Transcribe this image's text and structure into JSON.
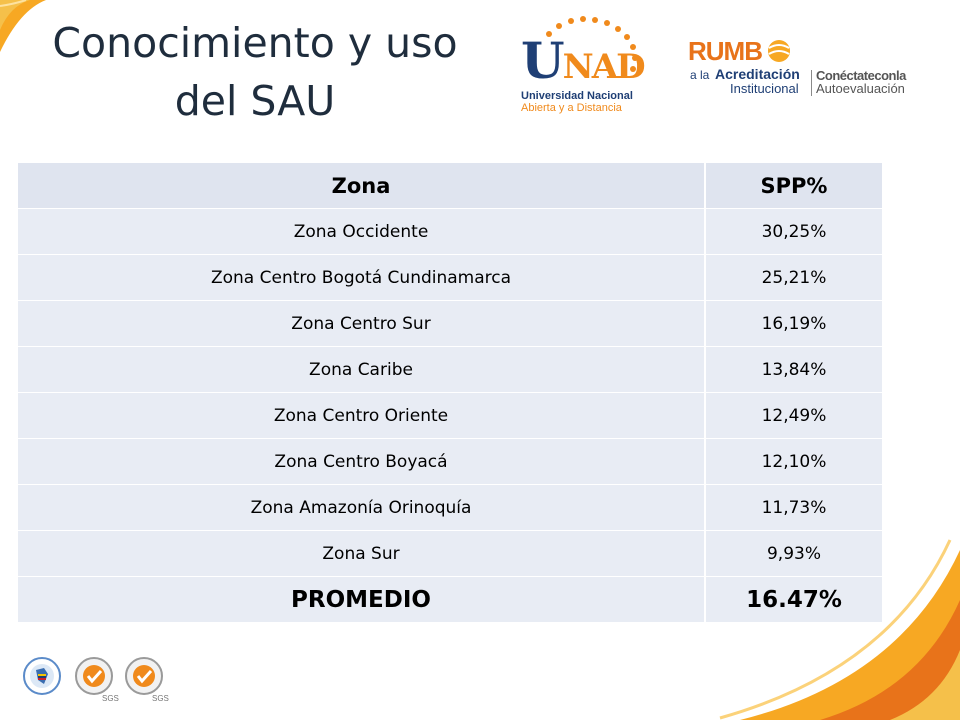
{
  "title": {
    "line1": "Conocimiento y uso",
    "line2": "del SAU"
  },
  "logos": {
    "unad": {
      "letter_u": "U",
      "letters_nad": "NAD",
      "line1": "Universidad Nacional",
      "line2": "Abierta y a Distancia"
    },
    "rumbo": {
      "rumbo": "RUMB",
      "a_la": "a la",
      "acreditacion": "Acreditación",
      "institucional": "Institucional",
      "conectate": "Conéctateconla",
      "autoevaluacion": "Autoevaluación"
    },
    "sgs_label": "SGS"
  },
  "table": {
    "headers": [
      "Zona",
      "SPP%"
    ],
    "rows": [
      [
        "Zona Occidente",
        "30,25%"
      ],
      [
        "Zona Centro Bogotá Cundinamarca",
        "25,21%"
      ],
      [
        "Zona Centro Sur",
        "16,19%"
      ],
      [
        "Zona Caribe",
        "13,84%"
      ],
      [
        "Zona Centro Oriente",
        "12,49%"
      ],
      [
        "Zona Centro Boyacá",
        "12,10%"
      ],
      [
        "Zona Amazonía Orinoquía",
        "11,73%"
      ],
      [
        "Zona Sur",
        "9,93%"
      ]
    ],
    "total": [
      "PROMEDIO",
      "16.47%"
    ]
  },
  "colors": {
    "accent_orange": "#f7a823",
    "accent_deep_orange": "#e8731a",
    "navy": "#1f3f75",
    "table_fill": "#e8ecf4"
  }
}
